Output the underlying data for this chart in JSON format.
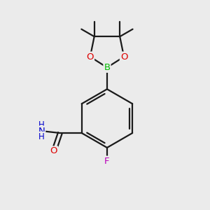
{
  "bg_color": "#ebebeb",
  "bond_color": "#1a1a1a",
  "B_color": "#00bb00",
  "O_color": "#dd0000",
  "N_color": "#0000cc",
  "F_color": "#bb00bb",
  "figsize": [
    3.0,
    3.0
  ],
  "dpi": 100,
  "xlim": [
    0,
    10
  ],
  "ylim": [
    0,
    10
  ]
}
